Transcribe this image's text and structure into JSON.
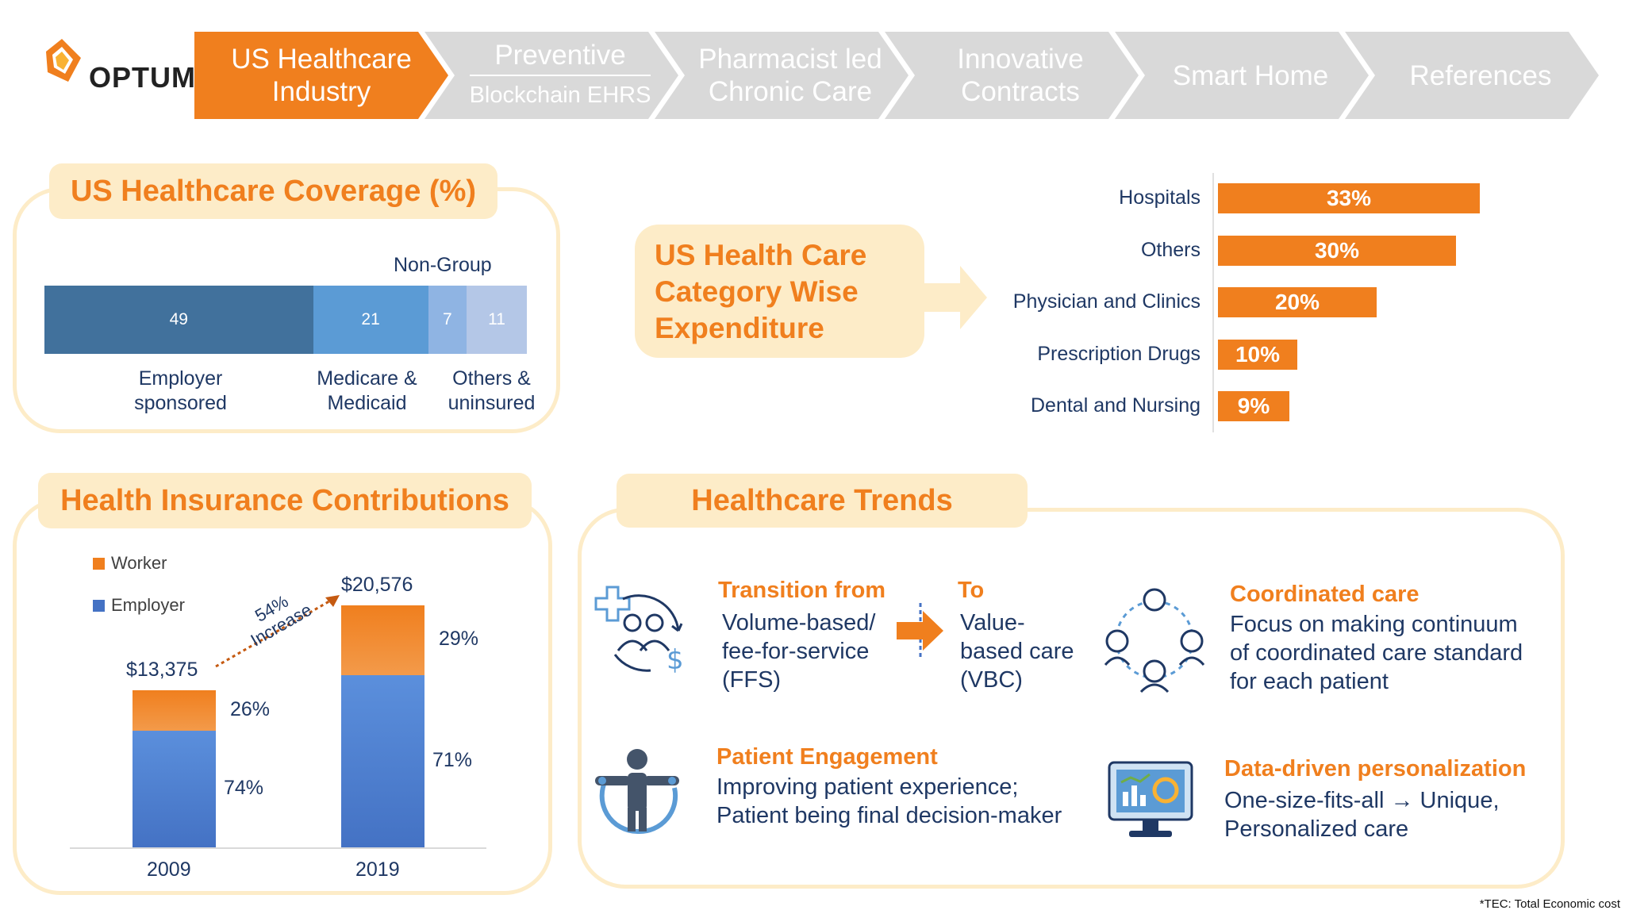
{
  "brand": {
    "name": "OPTUM",
    "tm": "™",
    "colors": {
      "orange": "#f07f1e",
      "grey": "#d9d9d9",
      "navy": "#1f3864",
      "cream": "#fdecc8"
    }
  },
  "nav": [
    {
      "line1": "US Healthcare",
      "line2": "Industry",
      "active": true
    },
    {
      "line1": "Preventive",
      "line2": "Blockchain EHRS",
      "active": false
    },
    {
      "line1": "Pharmacist led",
      "line2": "Chronic Care",
      "active": false
    },
    {
      "line1": "Innovative",
      "line2": "Contracts",
      "active": false
    },
    {
      "line1": "Smart Home",
      "line2": "",
      "active": false
    },
    {
      "line1": "References",
      "line2": "",
      "active": false
    }
  ],
  "coverage": {
    "title": "US Healthcare Coverage (%)",
    "non_group_label": "Non-Group",
    "segments": [
      {
        "value": 49,
        "label": "49",
        "color": "#41719c"
      },
      {
        "value": 21,
        "label": "21",
        "color": "#5b9bd5"
      },
      {
        "value": 7,
        "label": "7",
        "color": "#8fb4e3"
      },
      {
        "value": 11,
        "label": "11",
        "color": "#b4c7e7"
      }
    ],
    "labels": [
      {
        "line1": "Employer",
        "line2": "sponsored"
      },
      {
        "line1": "Medicare &",
        "line2": "Medicaid"
      },
      {
        "line1": "Others &",
        "line2": "uninsured"
      }
    ]
  },
  "expenditure": {
    "callout": {
      "line1": "US Health Care",
      "line2": "Category Wise",
      "line3": "Expenditure"
    },
    "items": [
      {
        "category": "Hospitals",
        "value": 33,
        "label": "33%"
      },
      {
        "category": "Others",
        "value": 30,
        "label": "30%"
      },
      {
        "category": "Physician and Clinics",
        "value": 20,
        "label": "20%"
      },
      {
        "category": "Prescription Drugs",
        "value": 10,
        "label": "10%"
      },
      {
        "category": "Dental and Nursing",
        "value": 9,
        "label": "9%"
      }
    ]
  },
  "contributions": {
    "title": "Health Insurance Contributions",
    "legend": [
      {
        "name": "Worker",
        "color": "#f07f1e"
      },
      {
        "name": "Employer",
        "color": "#4472c4"
      }
    ],
    "years": [
      {
        "year": "2009",
        "total": 13375,
        "total_label": "$13,375",
        "worker_pct": 26,
        "worker_label": "26%",
        "employer_pct": 74,
        "employer_label": "74%"
      },
      {
        "year": "2019",
        "total": 20576,
        "total_label": "$20,576",
        "worker_pct": 29,
        "worker_label": "29%",
        "employer_pct": 71,
        "employer_label": "71%"
      }
    ],
    "increase": {
      "line1": "54%",
      "line2": "Increase"
    }
  },
  "trends": {
    "title": "Healthcare Trends",
    "transition": {
      "from_head": "Transition from",
      "from_body": [
        "Volume-based/",
        "fee-for-service",
        "(FFS)"
      ],
      "to_head": "To",
      "to_body": [
        "Value-",
        "based care",
        "(VBC)"
      ]
    },
    "coordinated": {
      "head": "Coordinated care",
      "body": [
        "Focus on making continuum",
        "of coordinated care standard",
        "for each patient"
      ]
    },
    "engagement": {
      "head": "Patient Engagement",
      "body": [
        "Improving patient experience;",
        "Patient being final decision-maker"
      ]
    },
    "personalization": {
      "head": "Data-driven personalization",
      "body": [
        "One-size-fits-all → Unique,",
        "Personalized care"
      ]
    },
    "icons": [
      "patient-doctor-cycle-icon",
      "transition-arrow-icon",
      "care-team-circle-icon",
      "patient-engagement-icon",
      "data-analytics-monitor-icon"
    ]
  },
  "footnote": "*TEC: Total Economic cost"
}
